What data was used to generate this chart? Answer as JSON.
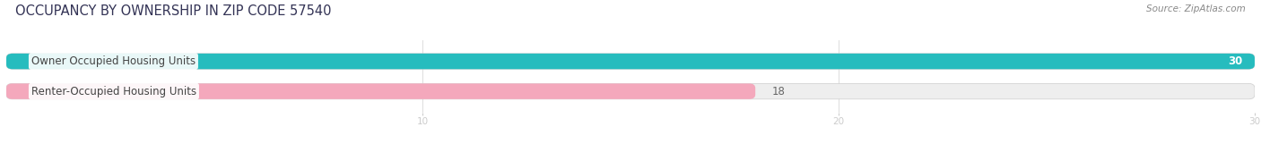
{
  "title": "OCCUPANCY BY OWNERSHIP IN ZIP CODE 57540",
  "source": "Source: ZipAtlas.com",
  "categories": [
    "Owner Occupied Housing Units",
    "Renter-Occupied Housing Units"
  ],
  "values": [
    30,
    18
  ],
  "bar_colors": [
    "#26bcbe",
    "#f4a8bc"
  ],
  "bar_bg_color": "#eeeeee",
  "xlim": [
    0,
    30
  ],
  "xticks": [
    10,
    20,
    30
  ],
  "title_fontsize": 10.5,
  "label_fontsize": 8.5,
  "value_fontsize": 8.5,
  "source_fontsize": 7.5,
  "bar_height": 0.52,
  "label_color": "#444444",
  "value_color_inside": "#ffffff",
  "value_color_outside": "#666666",
  "tick_color": "#aaaaaa",
  "background_color": "#ffffff",
  "title_color": "#333355"
}
